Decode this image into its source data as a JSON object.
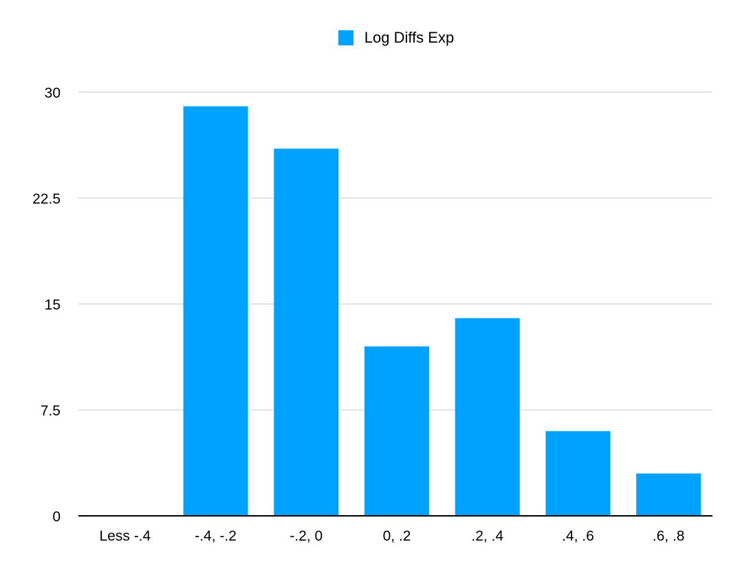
{
  "chart_data": {
    "type": "bar",
    "categories": [
      "Less -.4",
      "-.4, -.2",
      "-.2, 0",
      "0, .2",
      ".2, .4",
      ".4, .6",
      ".6, .8"
    ],
    "series": [
      {
        "name": "Log Diffs Exp",
        "values": [
          0,
          29,
          26,
          12,
          14,
          6,
          3
        ],
        "color": "#00a2ff"
      }
    ],
    "y_ticks": [
      "0",
      "7.5",
      "15",
      "22.5",
      "30"
    ],
    "ylim": [
      0,
      30
    ],
    "grid": true,
    "legend_position": "top-center",
    "title": "",
    "xlabel": "",
    "ylabel": ""
  }
}
